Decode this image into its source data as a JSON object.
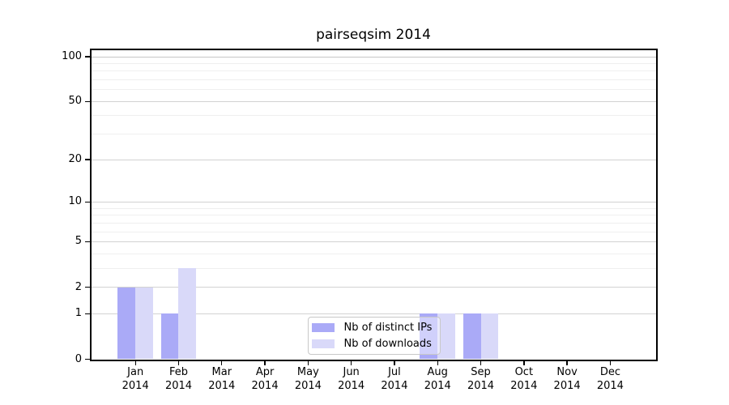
{
  "title": "pairseqsim 2014",
  "chart_data": {
    "type": "bar",
    "title": "pairseqsim 2014",
    "categories": [
      "Jan",
      "Feb",
      "Mar",
      "Apr",
      "May",
      "Jun",
      "Jul",
      "Aug",
      "Sep",
      "Oct",
      "Nov",
      "Dec"
    ],
    "x_sub_label": "2014",
    "series": [
      {
        "name": "Nb of distinct IPs",
        "color": "#aaaaf7",
        "values": [
          2,
          1,
          0,
          0,
          0,
          0,
          0,
          1,
          1,
          0,
          0,
          0
        ]
      },
      {
        "name": "Nb of downloads",
        "color": "#d9d9f9",
        "values": [
          2,
          3,
          0,
          0,
          0,
          0,
          0,
          1,
          1,
          0,
          0,
          0
        ]
      }
    ],
    "y_axis": {
      "scale": "log1p",
      "ticks": [
        100,
        50,
        20,
        10,
        5,
        2,
        1,
        0
      ],
      "minor_ticks": [
        3,
        4,
        6,
        7,
        8,
        9,
        30,
        40,
        60,
        70,
        80,
        90
      ],
      "range": [
        0,
        110
      ]
    },
    "grid": "horizontal",
    "legend_position": "inside-bottom-center"
  },
  "colors": {
    "bar_distinct_ips": "#aaaaf7",
    "bar_downloads": "#d9d9f9",
    "grid_major": "#d2d2d2",
    "grid_minor": "#efefef",
    "grid_top": "#c6c6c6",
    "axis": "#000000"
  }
}
